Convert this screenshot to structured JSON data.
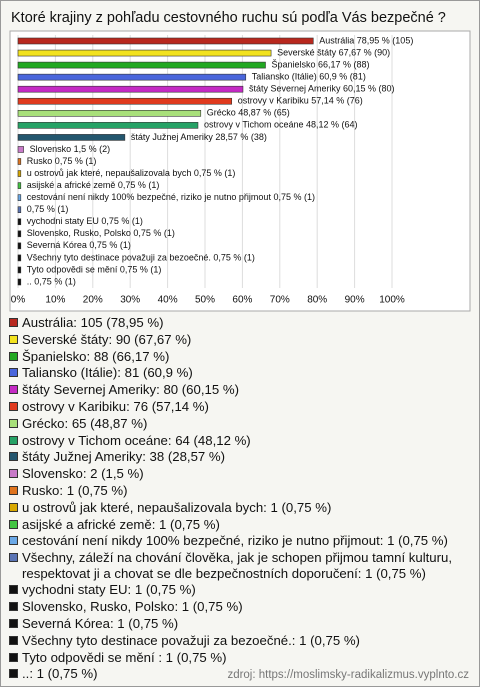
{
  "chart_data": {
    "type": "hbar",
    "title": "Ktoré krajiny z pohľadu cestovného ruchu sú podľa Vás bezpečné ?",
    "values": [
      78.95,
      67.67,
      66.17,
      60.9,
      60.15,
      57.14,
      48.87,
      48.12,
      28.57,
      1.5,
      0.75,
      0.75,
      0.75,
      0.75,
      0.75,
      0.75,
      0.75,
      0.75,
      0.75,
      0.75,
      0.75
    ],
    "value_labels": [
      "Austrália 78,95 % (105)",
      "Severské štáty 67,67 % (90)",
      "Španielsko 66,17 % (88)",
      "Taliansko (Itálie) 60,9 % (81)",
      "štáty Severnej Ameriky 60,15 % (80)",
      "ostrovy v Karibiku 57,14 % (76)",
      "Grécko 48,87 % (65)",
      "ostrovy v Tichom oceáne 48,12 % (64)",
      "štáty Južnej Ameriky 28,57 % (38)",
      "Slovensko 1,5 % (2)",
      "Rusko 0,75 % (1)",
      "u ostrovů jak které, nepaušalizovala bych 0,75 % (1)",
      "asijské a africké země 0,75 % (1)",
      "cestování není nikdy 100% bezpečné, riziko je nutno přijmout 0,75 % (1)",
      "0,75 % (1)",
      "vychodni staty EU 0,75 % (1)",
      "Slovensko, Rusko, Polsko 0,75 % (1)",
      "Severná Kórea 0,75 % (1)",
      "Všechny tyto destinace považuji za bezoečné. 0,75 % (1)",
      "Tyto odpovědi se mění  0,75 % (1)",
      ".. 0,75 % (1)"
    ],
    "legend": [
      "Austrália: 105 (78,95 %)",
      "Severské štáty: 90 (67,67 %)",
      "Španielsko: 88 (66,17 %)",
      "Taliansko (Itálie): 81 (60,9 %)",
      "štáty Severnej Ameriky: 80 (60,15 %)",
      "ostrovy v Karibiku: 76 (57,14 %)",
      "Grécko: 65 (48,87 %)",
      "ostrovy v Tichom oceáne: 64 (48,12 %)",
      "štáty Južnej Ameriky: 38 (28,57 %)",
      "Slovensko: 2 (1,5 %)",
      "Rusko: 1 (0,75 %)",
      "u ostrovů jak které, nepaušalizovala bych: 1 (0,75 %)",
      "asijské a africké země: 1 (0,75 %)",
      "cestování není nikdy 100% bezpečné, riziko je nutno přijmout: 1 (0,75 %)",
      "Všechny, záleží na chování člověka, jak je schopen přijmou tamní kulturu, respektovat ji a chovat se dle bezpečnostních doporučení: 1 (0,75 %)",
      "vychodni staty EU: 1 (0,75 %)",
      "Slovensko, Rusko, Polsko: 1 (0,75 %)",
      "Severná Kórea: 1 (0,75 %)",
      "Všechny tyto destinace považuji za bezoečné.: 1 (0,75 %)",
      "Tyto odpovědi se mění : 1 (0,75 %)",
      "..: 1 (0,75 %)"
    ],
    "colors": [
      "#b8281e",
      "#f2e21e",
      "#22a822",
      "#4a66dc",
      "#c42ac4",
      "#e03a1e",
      "#a8e07a",
      "#26a266",
      "#23566e",
      "#c87ac8",
      "#e0741e",
      "#d8a800",
      "#42c442",
      "#6aa8e6",
      "#5a74b4",
      "#111111",
      "#111111",
      "#111111",
      "#111111",
      "#111111",
      "#111111"
    ],
    "xlim": [
      0,
      100
    ],
    "xticks": [
      {
        "value": 0,
        "label": "0%"
      },
      {
        "value": 10,
        "label": "10%"
      },
      {
        "value": 20,
        "label": "20%"
      },
      {
        "value": 30,
        "label": "30%"
      },
      {
        "value": 40,
        "label": "40%"
      },
      {
        "value": 50,
        "label": "50%"
      },
      {
        "value": 60,
        "label": "60%"
      },
      {
        "value": 70,
        "label": "70%"
      },
      {
        "value": 80,
        "label": "80%"
      },
      {
        "value": 90,
        "label": "90%"
      },
      {
        "value": 100,
        "label": "100%"
      }
    ],
    "grid": true,
    "source": "zdroj: https://moslimsky-radikalizmus.vyplnto.cz"
  }
}
